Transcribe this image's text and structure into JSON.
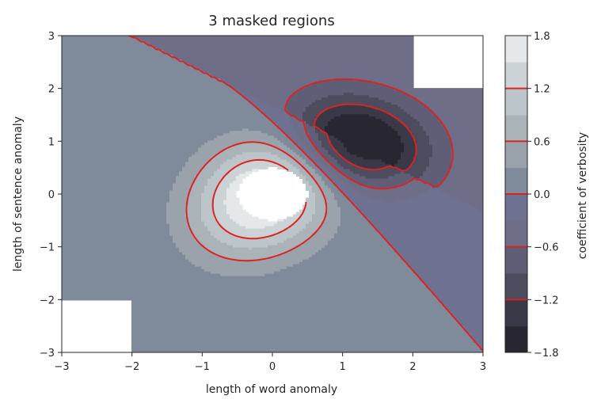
{
  "chart_data": {
    "type": "contourf",
    "title": "3 masked regions",
    "xlabel": "length of word anomaly",
    "ylabel": "length of sentence anomaly",
    "xlim": [
      -3,
      3
    ],
    "ylim": [
      -3,
      3
    ],
    "xticks": [
      "−3",
      "−2",
      "−1",
      "0",
      "1",
      "2",
      "3"
    ],
    "yticks": [
      "−3",
      "−2",
      "−1",
      "0",
      "1",
      "2",
      "3"
    ],
    "xtick_values": [
      -3,
      -2,
      -1,
      0,
      1,
      2,
      3
    ],
    "ytick_values": [
      -3,
      -2,
      -1,
      0,
      1,
      2,
      3
    ],
    "colorbar": {
      "label": "coefficient of verbosity",
      "range": [
        -1.8,
        1.8
      ],
      "tick_labels": [
        "−1.8",
        "−1.2",
        "−0.6",
        "0.0",
        "0.6",
        "1.2",
        "1.8"
      ],
      "tick_values": [
        -1.8,
        -1.2,
        -0.6,
        0.0,
        0.6,
        1.2,
        1.8
      ],
      "fill_levels": [
        -1.8,
        -1.5,
        -1.2,
        -0.9,
        -0.6,
        -0.3,
        0.0,
        0.3,
        0.6,
        0.9,
        1.2,
        1.5,
        1.8
      ],
      "fill_colors": [
        "#282731",
        "#3a3948",
        "#4d4c5f",
        "#5f5e76",
        "#6e6e88",
        "#6e7290",
        "#7f8a9a",
        "#9aa3ab",
        "#aab3b8",
        "#bcc5c9",
        "#ccd3d6",
        "#e4e8ea"
      ],
      "contour_lines": [
        -1.2,
        -0.6,
        0.0,
        0.6,
        1.2
      ],
      "contour_color": "#dd2222"
    },
    "masked_regions": [
      {
        "x": [
          2,
          3
        ],
        "y": [
          2,
          3
        ]
      },
      {
        "x": [
          -3,
          -2
        ],
        "y": [
          -3,
          -2
        ]
      },
      {
        "shape": "disk",
        "center": [
          0,
          0
        ],
        "radius": 0.5
      }
    ]
  }
}
